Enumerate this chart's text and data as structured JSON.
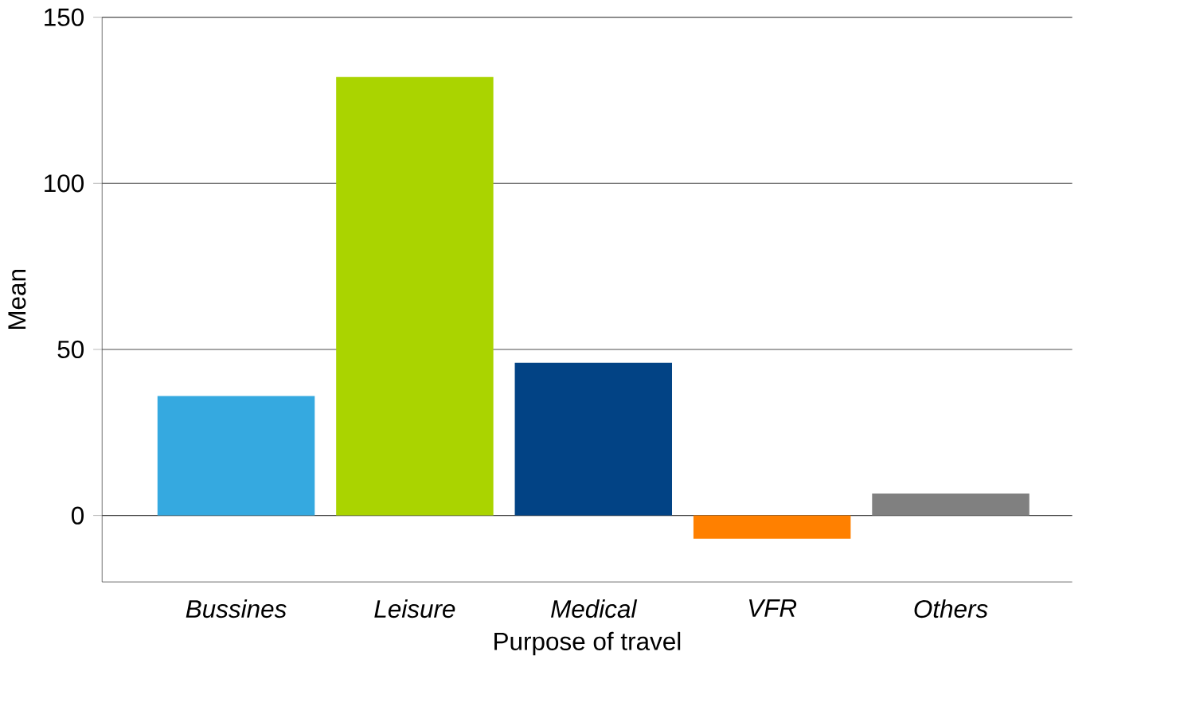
{
  "chart_data": {
    "type": "bar",
    "xlabel": "Purpose of travel",
    "ylabel": "Mean",
    "categories": [
      "Bussines",
      "Leisure",
      "Medical",
      "VFR",
      "Others"
    ],
    "values": [
      36,
      132,
      46,
      -7,
      6.6
    ],
    "colors": [
      "#35a9e0",
      "#aad400",
      "#024385",
      "#ff8000",
      "#808080"
    ],
    "ylim": [
      -20,
      150
    ],
    "yticks": [
      0,
      50,
      100,
      150
    ],
    "grid": "y"
  }
}
